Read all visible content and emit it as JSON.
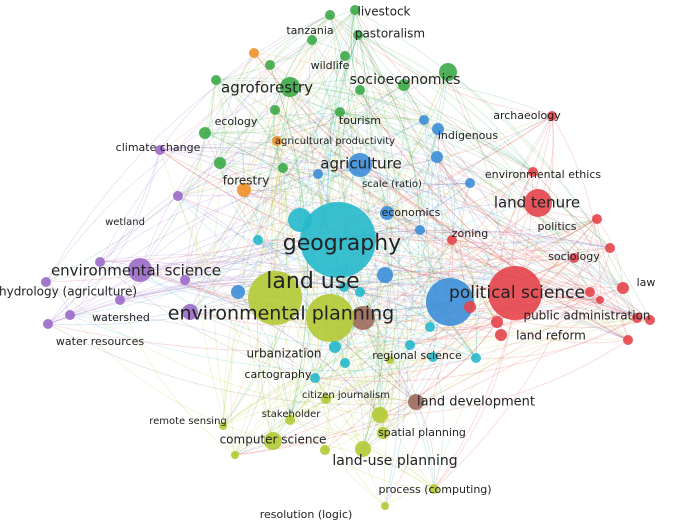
{
  "nodes": [
    {
      "label": "livestock"
    },
    {
      "label": "tanzania"
    },
    {
      "label": "pastoralism"
    },
    {
      "label": "wildlife"
    },
    {
      "label": "socioeconomics"
    },
    {
      "label": "agroforestry"
    },
    {
      "label": "ecology"
    },
    {
      "label": "tourism"
    },
    {
      "label": "agricultural productivity"
    },
    {
      "label": "indigenous"
    },
    {
      "label": "archaeology"
    },
    {
      "label": "climate change"
    },
    {
      "label": "agriculture"
    },
    {
      "label": "environmental ethics"
    },
    {
      "label": "forestry"
    },
    {
      "label": "scale (ratio)"
    },
    {
      "label": "land tenure"
    },
    {
      "label": "economics"
    },
    {
      "label": "wetland"
    },
    {
      "label": "politics"
    },
    {
      "label": "zoning"
    },
    {
      "label": "geography"
    },
    {
      "label": "sociology"
    },
    {
      "label": "environmental science"
    },
    {
      "label": "land use"
    },
    {
      "label": "law"
    },
    {
      "label": "hydrology (agriculture)"
    },
    {
      "label": "political science"
    },
    {
      "label": "environmental planning"
    },
    {
      "label": "public administration"
    },
    {
      "label": "watershed"
    },
    {
      "label": "land reform"
    },
    {
      "label": "water resources"
    },
    {
      "label": "urbanization"
    },
    {
      "label": "regional science"
    },
    {
      "label": "cartography"
    },
    {
      "label": "citizen journalism"
    },
    {
      "label": "land development"
    },
    {
      "label": "remote sensing"
    },
    {
      "label": "stakeholder"
    },
    {
      "label": "computer science"
    },
    {
      "label": "spatial planning"
    },
    {
      "label": "land-use planning"
    },
    {
      "label": "process (computing)"
    },
    {
      "label": "resolution (logic)"
    }
  ]
}
